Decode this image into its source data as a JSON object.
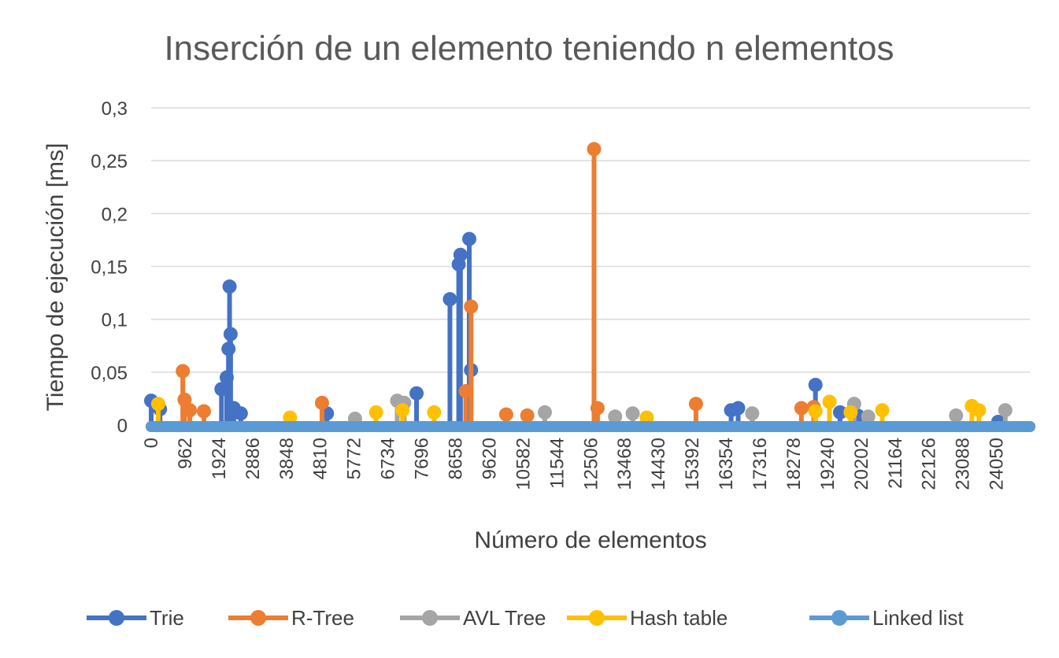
{
  "chart_data": {
    "type": "line",
    "title": "Inserción de un elemento teniendo n elementos",
    "xlabel": "Número de elementos",
    "ylabel": "Tiempo de ejecución [ms]",
    "ylim": [
      0,
      0.3
    ],
    "yticks": [
      "0",
      "0,05",
      "0,1",
      "0,15",
      "0,2",
      "0,25",
      "0,3"
    ],
    "xlim": [
      0,
      25000
    ],
    "xticks": [
      "0",
      "962",
      "1924",
      "2886",
      "3848",
      "4810",
      "5772",
      "6734",
      "7696",
      "8658",
      "9620",
      "10582",
      "11544",
      "12506",
      "13468",
      "14430",
      "15392",
      "16354",
      "17316",
      "18278",
      "19240",
      "20202",
      "21164",
      "22126",
      "23088",
      "24050"
    ],
    "grid": true,
    "legend_position": "bottom",
    "series": [
      {
        "name": "Trie",
        "color": "#4472C4",
        "spikes": [
          [
            0,
            0.023
          ],
          [
            250,
            0.015
          ],
          [
            2000,
            0.034
          ],
          [
            2150,
            0.045
          ],
          [
            2200,
            0.072
          ],
          [
            2260,
            0.086
          ],
          [
            2230,
            0.131
          ],
          [
            2350,
            0.016
          ],
          [
            2550,
            0.011
          ],
          [
            5000,
            0.011
          ],
          [
            7550,
            0.03
          ],
          [
            8500,
            0.119
          ],
          [
            8750,
            0.152
          ],
          [
            8800,
            0.161
          ],
          [
            9050,
            0.176
          ],
          [
            9100,
            0.052
          ],
          [
            16500,
            0.014
          ],
          [
            16700,
            0.016
          ],
          [
            18900,
            0.038
          ],
          [
            19600,
            0.012
          ],
          [
            20100,
            0.009
          ],
          [
            24100,
            0.003
          ]
        ]
      },
      {
        "name": "R-Tree",
        "color": "#ED7D31",
        "spikes": [
          [
            900,
            0.051
          ],
          [
            950,
            0.024
          ],
          [
            1100,
            0.014
          ],
          [
            1500,
            0.013
          ],
          [
            4860,
            0.021
          ],
          [
            8950,
            0.032
          ],
          [
            9100,
            0.112
          ],
          [
            10100,
            0.01
          ],
          [
            10700,
            0.009
          ],
          [
            12600,
            0.261
          ],
          [
            12700,
            0.016
          ],
          [
            15500,
            0.02
          ],
          [
            18500,
            0.016
          ],
          [
            18850,
            0.017
          ]
        ]
      },
      {
        "name": "AVL Tree",
        "color": "#A5A5A5",
        "spikes": [
          [
            5800,
            0.006
          ],
          [
            7000,
            0.023
          ],
          [
            7200,
            0.021
          ],
          [
            11200,
            0.012
          ],
          [
            13200,
            0.008
          ],
          [
            13700,
            0.011
          ],
          [
            17100,
            0.011
          ],
          [
            20000,
            0.02
          ],
          [
            20400,
            0.008
          ],
          [
            22900,
            0.009
          ],
          [
            24300,
            0.014
          ]
        ]
      },
      {
        "name": "Hash table",
        "color": "#FFC000",
        "spikes": [
          [
            200,
            0.02
          ],
          [
            3950,
            0.007
          ],
          [
            6400,
            0.012
          ],
          [
            7150,
            0.014
          ],
          [
            8050,
            0.012
          ],
          [
            14100,
            0.007
          ],
          [
            18900,
            0.013
          ],
          [
            19300,
            0.022
          ],
          [
            19900,
            0.012
          ],
          [
            20800,
            0.014
          ],
          [
            23350,
            0.018
          ],
          [
            23550,
            0.014
          ]
        ]
      },
      {
        "name": "Linked list",
        "color": "#5B9BD5",
        "spikes": []
      }
    ]
  }
}
